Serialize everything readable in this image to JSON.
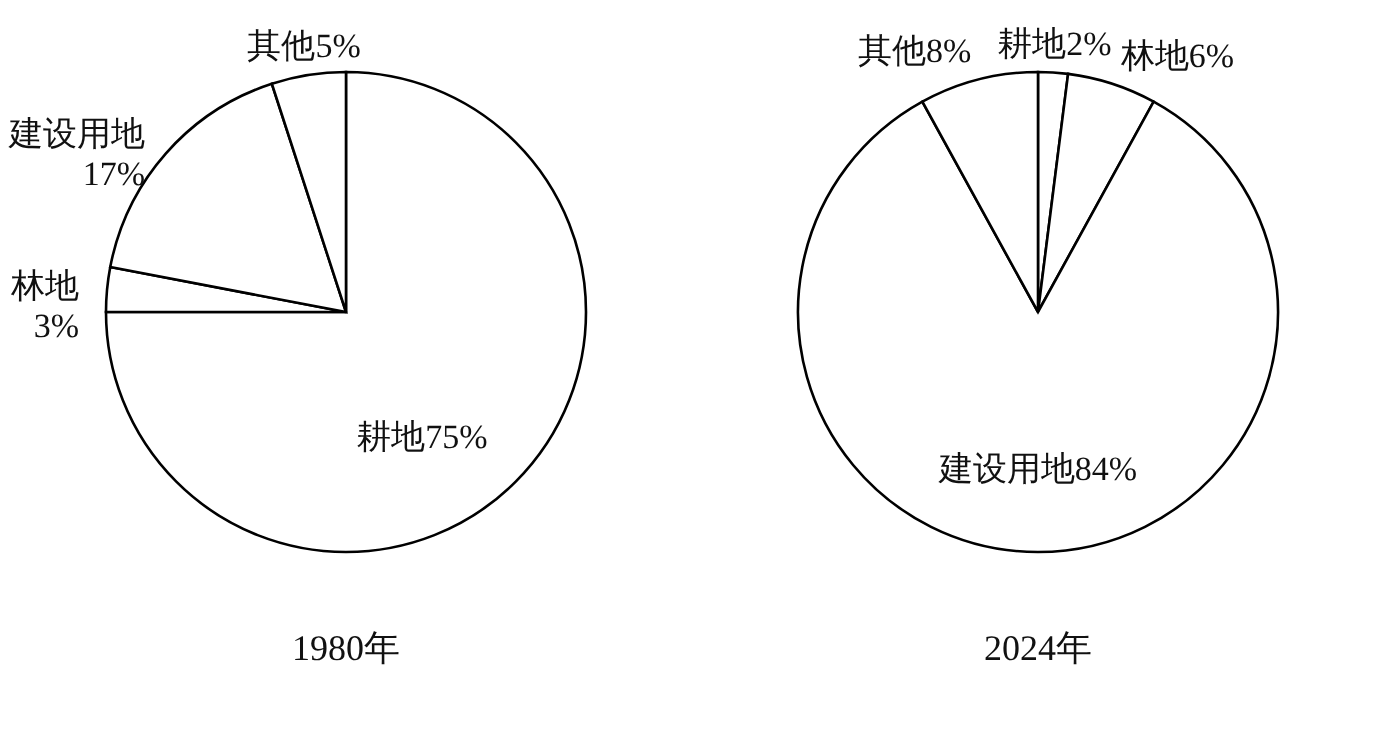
{
  "chart_data": [
    {
      "type": "pie",
      "title": "1980年",
      "categories": [
        "耕地",
        "林地",
        "建设用地",
        "其他"
      ],
      "values": [
        75,
        3,
        17,
        5
      ],
      "value_labels": [
        "75%",
        "3%",
        "17%",
        "5%"
      ],
      "colors": [
        "#ffffff",
        "#ffffff",
        "#ffffff",
        "#ffffff"
      ]
    },
    {
      "type": "pie",
      "title": "2024年",
      "categories": [
        "耕地",
        "林地",
        "建设用地",
        "其他"
      ],
      "values": [
        2,
        6,
        84,
        8
      ],
      "value_labels": [
        "2%",
        "6%",
        "84%",
        "8%"
      ],
      "colors": [
        "#ffffff",
        "#ffffff",
        "#ffffff",
        "#ffffff"
      ]
    }
  ]
}
